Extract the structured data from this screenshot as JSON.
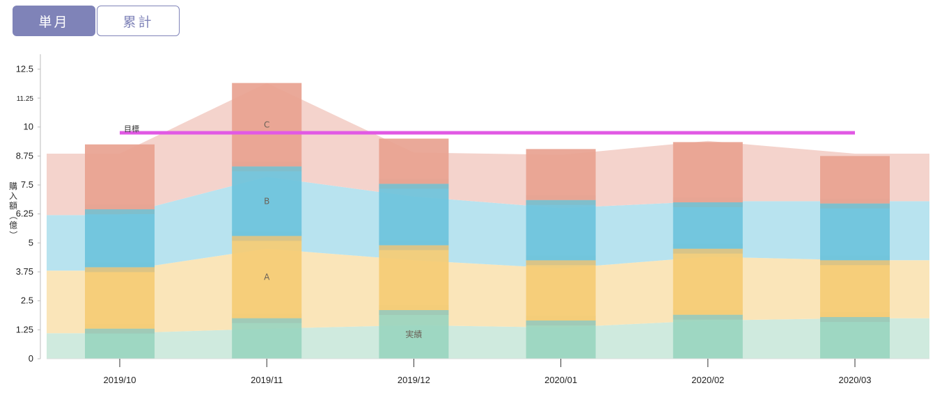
{
  "toggle": {
    "single_label": "単月",
    "cumulative_label": "累計",
    "active": "single"
  },
  "chart_data": {
    "type": "bar",
    "stacked": true,
    "categories": [
      "2019/10",
      "2019/11",
      "2019/12",
      "2020/01",
      "2020/02",
      "2020/03"
    ],
    "ylabel": "購入額（億）",
    "ylim": [
      0,
      13
    ],
    "yticks": [
      0,
      1.25,
      2.5,
      3.75,
      5,
      6.25,
      7.5,
      8.75,
      10,
      11.25,
      12.5
    ],
    "ytick_labels": [
      "0",
      "1.25",
      "2.5",
      "3.75",
      "5",
      "6.25",
      "7.5",
      "8.75",
      "10",
      "11.25",
      "12.5"
    ],
    "grid": false,
    "series": [
      {
        "name": "実績",
        "color": "#9ad5bf",
        "values": [
          1.3,
          1.75,
          2.1,
          1.65,
          1.9,
          1.8
        ]
      },
      {
        "name": "A",
        "color": "#f5cc74",
        "values": [
          2.65,
          3.55,
          2.8,
          2.6,
          2.85,
          2.45
        ]
      },
      {
        "name": "B",
        "color": "#6cc3dc",
        "values": [
          2.5,
          3.0,
          2.65,
          2.6,
          2.0,
          2.45
        ]
      },
      {
        "name": "C",
        "color": "#e8a290",
        "values": [
          2.8,
          3.6,
          1.95,
          2.2,
          2.6,
          2.05
        ]
      }
    ],
    "series_labels": [
      {
        "series": "実績",
        "category": "2019/12"
      },
      {
        "series": "A",
        "category": "2019/11"
      },
      {
        "series": "B",
        "category": "2019/11"
      },
      {
        "series": "C",
        "category": "2019/11"
      }
    ],
    "area_background": {
      "series": [
        {
          "name": "実績",
          "color": "#cfeade",
          "values": [
            1.1,
            1.3,
            1.45,
            1.35,
            1.65,
            1.75
          ]
        },
        {
          "name": "A",
          "color": "#fae5b9",
          "values": [
            2.7,
            3.45,
            2.8,
            2.55,
            2.75,
            2.5
          ]
        },
        {
          "name": "B",
          "color": "#b8e3ef",
          "values": [
            2.4,
            3.1,
            2.75,
            2.6,
            2.4,
            2.55
          ]
        },
        {
          "name": "C",
          "color": "#f4d3cc",
          "values": [
            2.65,
            4.05,
            1.9,
            2.3,
            2.6,
            2.05
          ]
        }
      ]
    },
    "target": {
      "label": "目標",
      "value": 9.75,
      "color": "#e159e4"
    }
  }
}
